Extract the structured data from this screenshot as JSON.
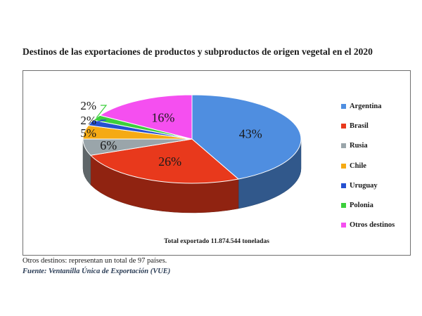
{
  "chart_data": {
    "type": "pie",
    "title": "Destinos de las exportaciones de productos y subproductos de origen vegetal en el 2020",
    "categories": [
      "Argentina",
      "Brasil",
      "Rusia",
      "Chile",
      "Uruguay",
      "Polonia",
      "Otros destinos"
    ],
    "values": [
      43,
      26,
      6,
      5,
      2,
      2,
      16
    ],
    "value_labels": [
      "43%",
      "26%",
      "6%",
      "5%",
      "2%",
      "2%",
      "16%"
    ],
    "colors": [
      "#4f8ee0",
      "#e8391c",
      "#9aa5aa",
      "#f5aa14",
      "#2550d0",
      "#3ccf3c",
      "#f54ff0"
    ],
    "legend_position": "right",
    "three_d": true,
    "annotation": "Total exportado 11.874.544 toneladas"
  },
  "notes": {
    "otros": "Otros destinos: representan un total de 97 países.",
    "fuente": "Fuente: Ventanilla Única de Exportación (VUE)"
  }
}
